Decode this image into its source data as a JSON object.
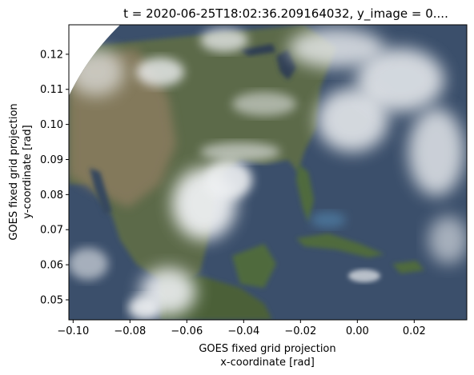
{
  "chart_data": {
    "type": "heatmap",
    "title": "t = 2020-06-25T18:02:36.209164032, y_image = 0....",
    "xlabel": [
      "GOES fixed grid projection",
      "x-coordinate [rad]"
    ],
    "ylabel": [
      "GOES fixed grid projection",
      "y-coordinate [rad]"
    ],
    "xlim": [
      -0.1015,
      0.0385
    ],
    "ylim": [
      0.0443,
      0.1284
    ],
    "x_ticks": [
      -0.1,
      -0.08,
      -0.06,
      -0.04,
      -0.02,
      0.0,
      0.02
    ],
    "x_tick_labels": [
      "−0.10",
      "−0.08",
      "−0.06",
      "−0.04",
      "−0.02",
      "0.00",
      "0.02"
    ],
    "y_ticks": [
      0.05,
      0.06,
      0.07,
      0.08,
      0.09,
      0.1,
      0.11,
      0.12
    ],
    "y_tick_labels": [
      "0.05",
      "0.06",
      "0.07",
      "0.08",
      "0.09",
      "0.10",
      "0.11",
      "0.12"
    ],
    "grid": false,
    "image_content": "true-color satellite view of North America, Gulf of Mexico and Caribbean with clouds",
    "colors": {
      "ocean": "#3b4f6b",
      "land_green": "#5b6a48",
      "land_brown": "#8a7c5e",
      "cloud": "#eef0f2",
      "space": "#ffffff"
    }
  }
}
